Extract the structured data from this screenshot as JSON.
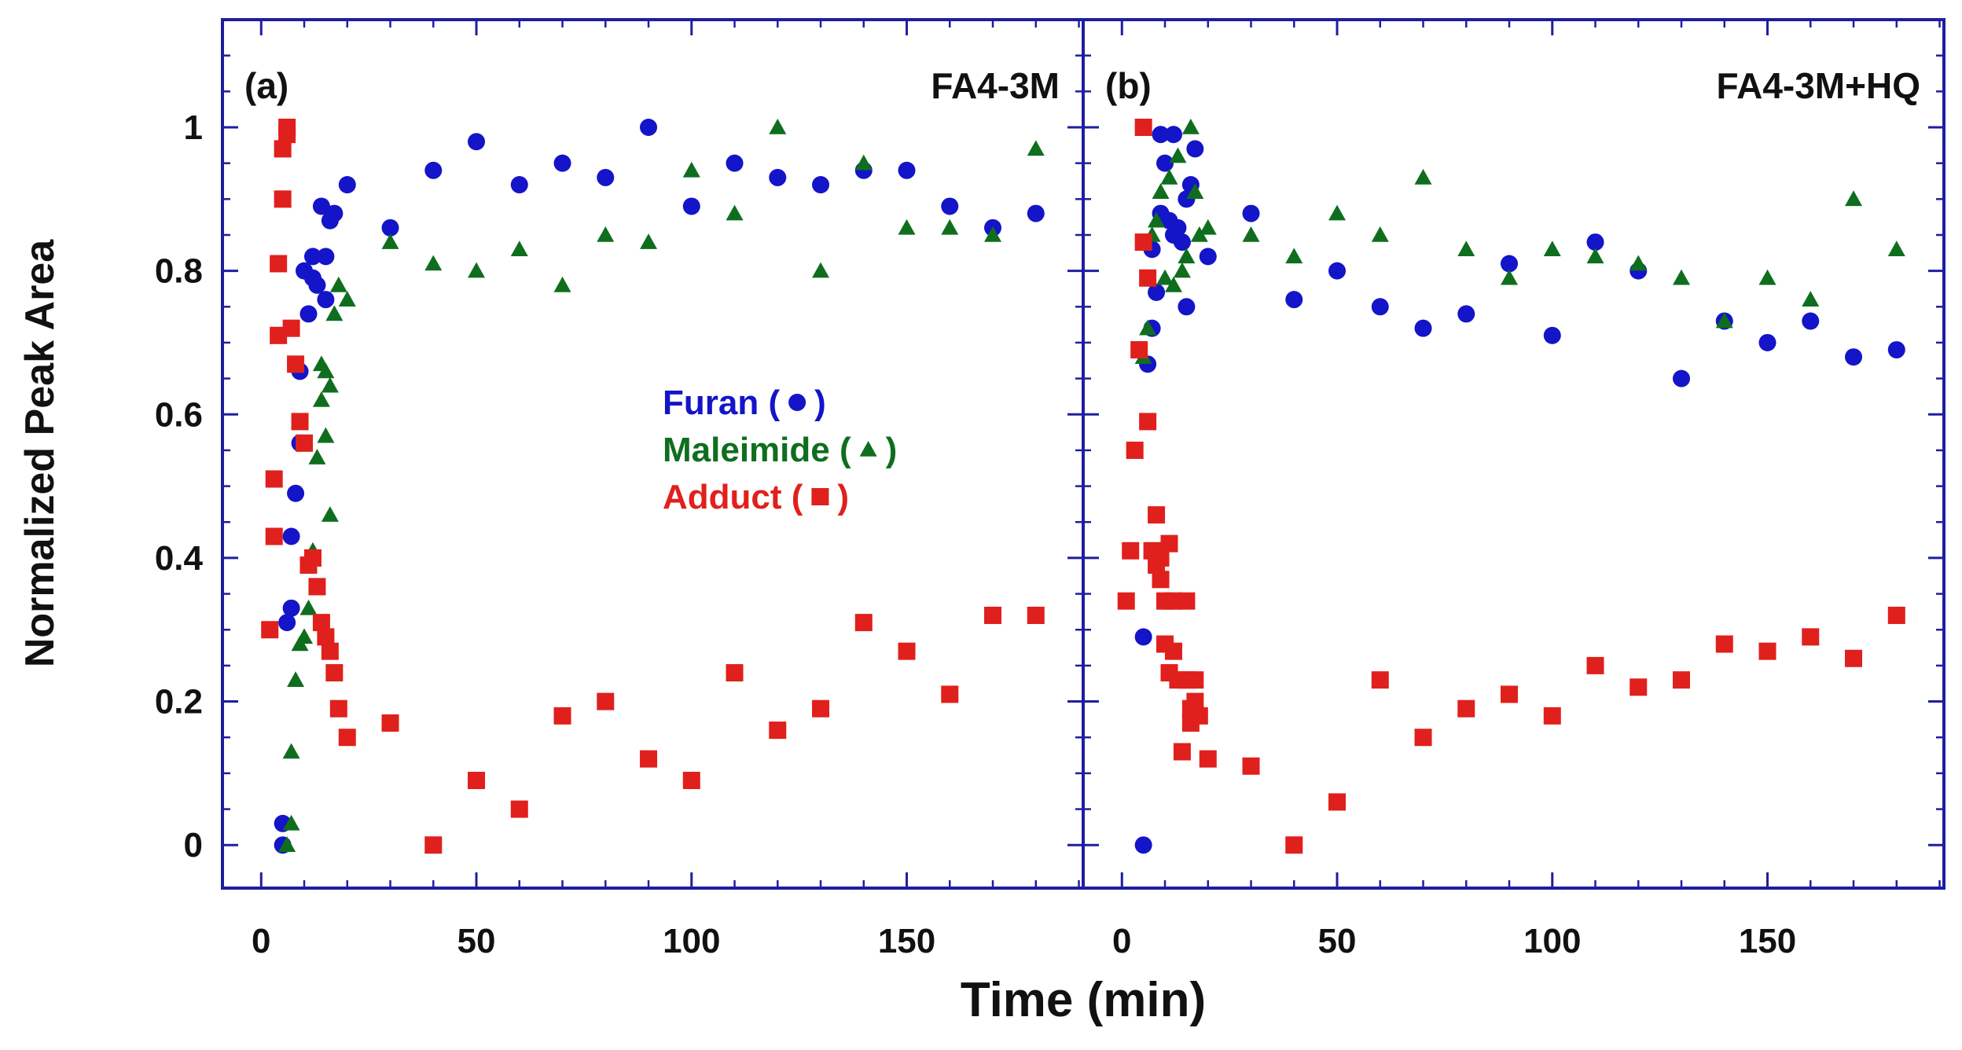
{
  "figure": {
    "xlabel": "Time (min)",
    "ylabel": "Normalized Peak Area",
    "colors": {
      "furan": "#1414c8",
      "maleimide": "#0f6e1e",
      "adduct": "#e0201c",
      "frame": "#1e1ea0",
      "text": "#111111"
    }
  },
  "chart_data": [
    {
      "type": "scatter",
      "panel_label": "(a)",
      "title": "FA4-3M",
      "xlabel": "Time (min)",
      "ylabel": "Normalized Peak Area",
      "xlim": [
        -9,
        191
      ],
      "ylim": [
        -0.06,
        1.15
      ],
      "xticks": [
        0,
        50,
        100,
        150
      ],
      "xtick_labels": [
        "0",
        "50",
        "100",
        "150"
      ],
      "yticks": [
        0,
        0.2,
        0.4,
        0.6,
        0.8,
        1
      ],
      "ytick_labels": [
        "0",
        "0.2",
        "0.4",
        "0.6",
        "0.8",
        "1"
      ],
      "legend": {
        "position": "center",
        "entries": [
          {
            "label": "Furan (",
            "close": ")",
            "marker": "circle",
            "series": "furan"
          },
          {
            "label": "Maleimide (",
            "close": ")",
            "marker": "triangle",
            "series": "maleimide"
          },
          {
            "label": "Adduct (",
            "close": ")",
            "marker": "square",
            "series": "adduct"
          }
        ]
      },
      "series": [
        {
          "name": "Furan",
          "marker": "circle",
          "x": [
            5,
            5,
            6,
            7,
            7,
            8,
            9,
            9,
            10,
            11,
            12,
            12,
            13,
            14,
            15,
            15,
            16,
            17,
            20,
            30,
            40,
            50,
            60,
            70,
            80,
            90,
            100,
            110,
            120,
            130,
            140,
            150,
            160,
            170,
            180
          ],
          "y": [
            0,
            0.03,
            0.31,
            0.33,
            0.43,
            0.49,
            0.56,
            0.66,
            0.8,
            0.74,
            0.82,
            0.79,
            0.78,
            0.89,
            0.82,
            0.76,
            0.87,
            0.88,
            0.92,
            0.86,
            0.94,
            0.98,
            0.92,
            0.95,
            0.93,
            1.0,
            0.89,
            0.95,
            0.93,
            0.92,
            0.94,
            0.94,
            0.89,
            0.86,
            0.88
          ]
        },
        {
          "name": "Maleimide",
          "marker": "triangle",
          "x": [
            6,
            7,
            7,
            8,
            9,
            10,
            11,
            12,
            13,
            14,
            14,
            15,
            15,
            16,
            16,
            17,
            18,
            20,
            30,
            40,
            50,
            60,
            70,
            80,
            90,
            100,
            110,
            120,
            130,
            140,
            150,
            160,
            170,
            180
          ],
          "y": [
            0,
            0.03,
            0.13,
            0.23,
            0.28,
            0.29,
            0.33,
            0.41,
            0.54,
            0.62,
            0.67,
            0.57,
            0.66,
            0.46,
            0.64,
            0.74,
            0.78,
            0.76,
            0.84,
            0.81,
            0.8,
            0.83,
            0.78,
            0.85,
            0.84,
            0.94,
            0.88,
            1.0,
            0.8,
            0.95,
            0.86,
            0.86,
            0.85,
            0.97
          ]
        },
        {
          "name": "Adduct",
          "marker": "square",
          "x": [
            2,
            3,
            3,
            4,
            4,
            5,
            5,
            6,
            6,
            7,
            8,
            9,
            10,
            11,
            12,
            13,
            14,
            15,
            16,
            17,
            18,
            20,
            30,
            40,
            50,
            60,
            70,
            80,
            90,
            100,
            110,
            120,
            130,
            140,
            150,
            160,
            170,
            180
          ],
          "y": [
            0.3,
            0.43,
            0.51,
            0.71,
            0.81,
            0.9,
            0.97,
            0.99,
            1.0,
            0.72,
            0.67,
            0.59,
            0.56,
            0.39,
            0.4,
            0.36,
            0.31,
            0.29,
            0.27,
            0.24,
            0.19,
            0.15,
            0.17,
            0.0,
            0.09,
            0.05,
            0.18,
            0.2,
            0.12,
            0.09,
            0.24,
            0.16,
            0.19,
            0.31,
            0.27,
            0.21,
            0.32,
            0.32
          ]
        }
      ]
    },
    {
      "type": "scatter",
      "panel_label": "(b)",
      "title": "FA4-3M+HQ",
      "xlabel": "Time (min)",
      "ylabel": "Normalized Peak Area",
      "xlim": [
        -9,
        191
      ],
      "ylim": [
        -0.06,
        1.15
      ],
      "xticks": [
        0,
        50,
        100,
        150
      ],
      "xtick_labels": [
        "0",
        "50",
        "100",
        "150"
      ],
      "yticks": [
        0,
        0.2,
        0.4,
        0.6,
        0.8,
        1
      ],
      "series": [
        {
          "name": "Furan",
          "marker": "circle",
          "x": [
            5,
            5,
            6,
            7,
            7,
            8,
            9,
            9,
            10,
            11,
            12,
            12,
            13,
            14,
            15,
            15,
            16,
            17,
            20,
            30,
            40,
            50,
            60,
            70,
            80,
            90,
            100,
            110,
            120,
            130,
            140,
            150,
            160,
            170,
            180
          ],
          "y": [
            0,
            0.29,
            0.67,
            0.72,
            0.83,
            0.77,
            0.99,
            0.88,
            0.95,
            0.87,
            0.99,
            0.85,
            0.86,
            0.84,
            0.9,
            0.75,
            0.92,
            0.97,
            0.82,
            0.88,
            0.76,
            0.8,
            0.75,
            0.72,
            0.74,
            0.81,
            0.71,
            0.84,
            0.8,
            0.65,
            0.73,
            0.7,
            0.73,
            0.68,
            0.69
          ]
        },
        {
          "name": "Maleimide",
          "marker": "triangle",
          "x": [
            5,
            6,
            7,
            8,
            9,
            10,
            11,
            12,
            13,
            14,
            15,
            16,
            17,
            18,
            20,
            30,
            40,
            50,
            60,
            70,
            80,
            90,
            100,
            110,
            120,
            130,
            140,
            150,
            160,
            170,
            180
          ],
          "y": [
            0.68,
            0.72,
            0.85,
            0.87,
            0.91,
            0.79,
            0.93,
            0.78,
            0.96,
            0.8,
            0.82,
            1.0,
            0.91,
            0.85,
            0.86,
            0.85,
            0.82,
            0.88,
            0.85,
            0.93,
            0.83,
            0.79,
            0.83,
            0.82,
            0.81,
            0.79,
            0.73,
            0.79,
            0.76,
            0.9,
            0.83
          ]
        },
        {
          "name": "Adduct",
          "marker": "square",
          "x": [
            1,
            2,
            3,
            4,
            5,
            5,
            6,
            6,
            7,
            8,
            8,
            9,
            9,
            10,
            10,
            11,
            11,
            12,
            12,
            13,
            14,
            15,
            15,
            16,
            16,
            17,
            17,
            18,
            20,
            30,
            40,
            50,
            60,
            70,
            80,
            90,
            100,
            110,
            120,
            130,
            140,
            150,
            160,
            170,
            180
          ],
          "y": [
            0.34,
            0.41,
            0.55,
            0.69,
            0.84,
            1.0,
            0.59,
            0.79,
            0.41,
            0.46,
            0.39,
            0.4,
            0.37,
            0.34,
            0.28,
            0.42,
            0.24,
            0.34,
            0.27,
            0.23,
            0.13,
            0.34,
            0.23,
            0.19,
            0.17,
            0.2,
            0.23,
            0.18,
            0.12,
            0.11,
            0.0,
            0.06,
            0.23,
            0.15,
            0.19,
            0.21,
            0.18,
            0.25,
            0.22,
            0.23,
            0.28,
            0.27,
            0.29,
            0.26,
            0.32
          ]
        }
      ]
    }
  ]
}
